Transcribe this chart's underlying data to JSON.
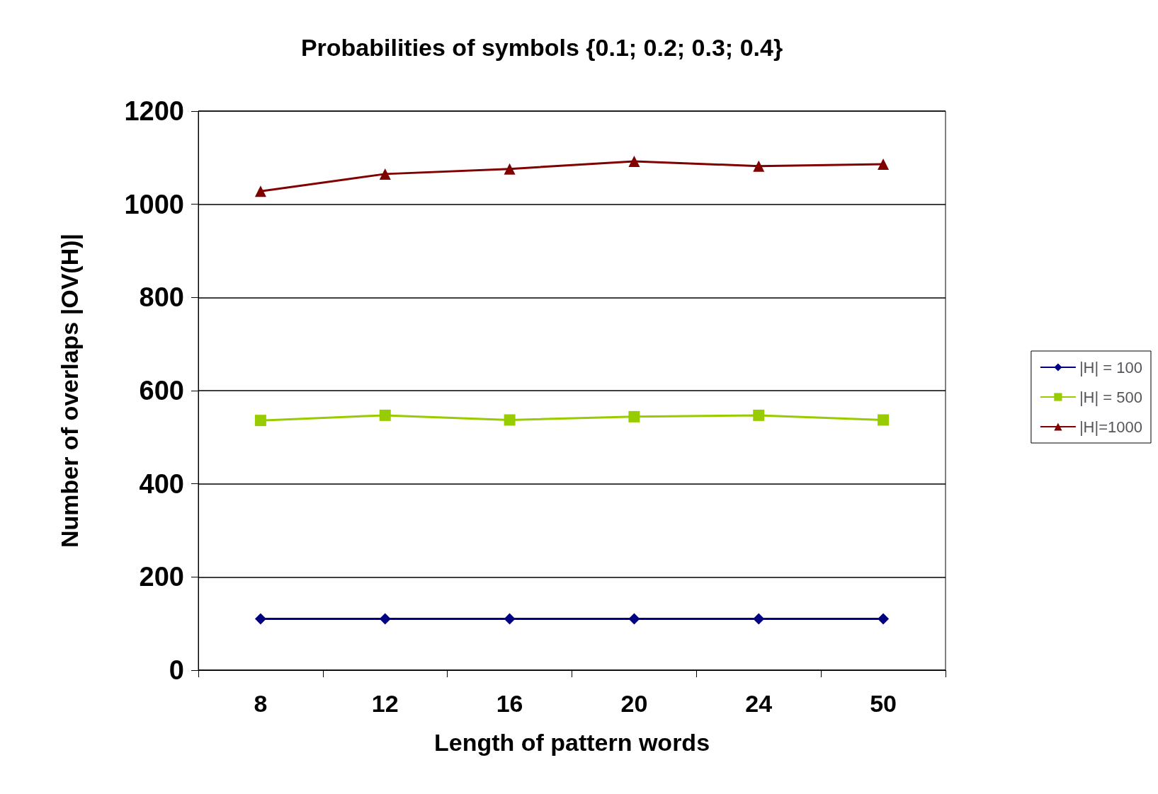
{
  "chart_data": {
    "type": "line",
    "title": "Probabilities of symbols {0.1; 0.2; 0.3; 0.4}",
    "xlabel": "Length of pattern words",
    "ylabel": "Number of overlaps |OV(H)|",
    "categories": [
      "8",
      "12",
      "16",
      "20",
      "24",
      "50"
    ],
    "series": [
      {
        "name": "|H| = 100",
        "color": "#000080",
        "marker": "diamond",
        "values": [
          110,
          110,
          110,
          110,
          110,
          110
        ]
      },
      {
        "name": "|H| = 500",
        "color": "#99cc00",
        "marker": "square",
        "values": [
          536,
          547,
          537,
          544,
          547,
          537
        ]
      },
      {
        "name": "|H|=1000",
        "color": "#800000",
        "marker": "triangle",
        "values": [
          1028,
          1065,
          1076,
          1092,
          1082,
          1086
        ]
      }
    ],
    "ylim": [
      0,
      1200
    ],
    "yticks": [
      0,
      200,
      400,
      600,
      800,
      1000,
      1200
    ],
    "grid": "y",
    "legend": "right",
    "line_style": "solid"
  }
}
